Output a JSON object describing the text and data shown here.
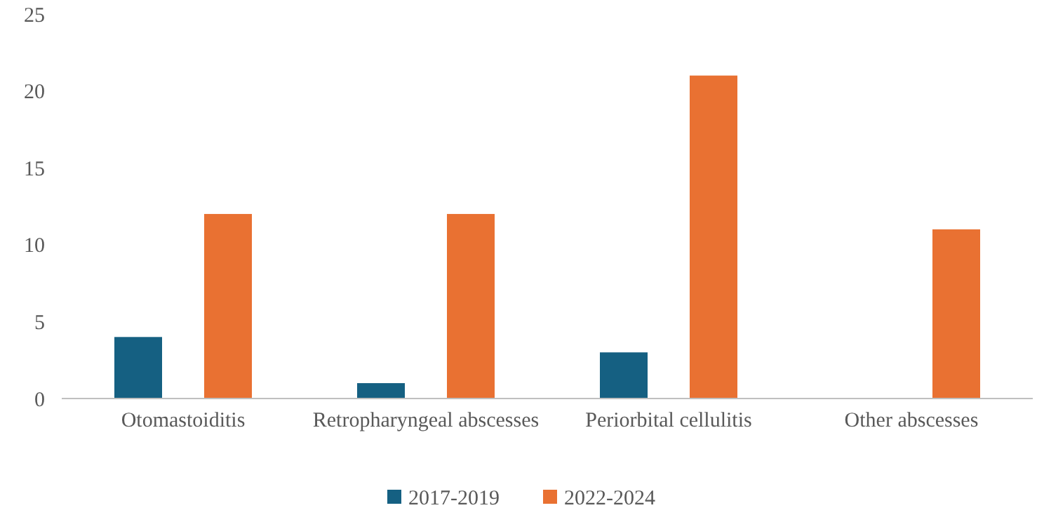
{
  "chart_data": {
    "type": "bar",
    "categories": [
      "Otomastoiditis",
      "Retropharyngeal abscesses",
      "Periorbital cellulitis",
      "Other abscesses"
    ],
    "series": [
      {
        "name": "2017-2019",
        "color": "#156082",
        "values": [
          4,
          1,
          3,
          0
        ]
      },
      {
        "name": "2022-2024",
        "color": "#e97132",
        "values": [
          12,
          12,
          21,
          11
        ]
      }
    ],
    "ylim": [
      0,
      25
    ],
    "yticks": [
      0,
      5,
      10,
      15,
      20,
      25
    ],
    "grid": false,
    "legend": "bottom"
  }
}
